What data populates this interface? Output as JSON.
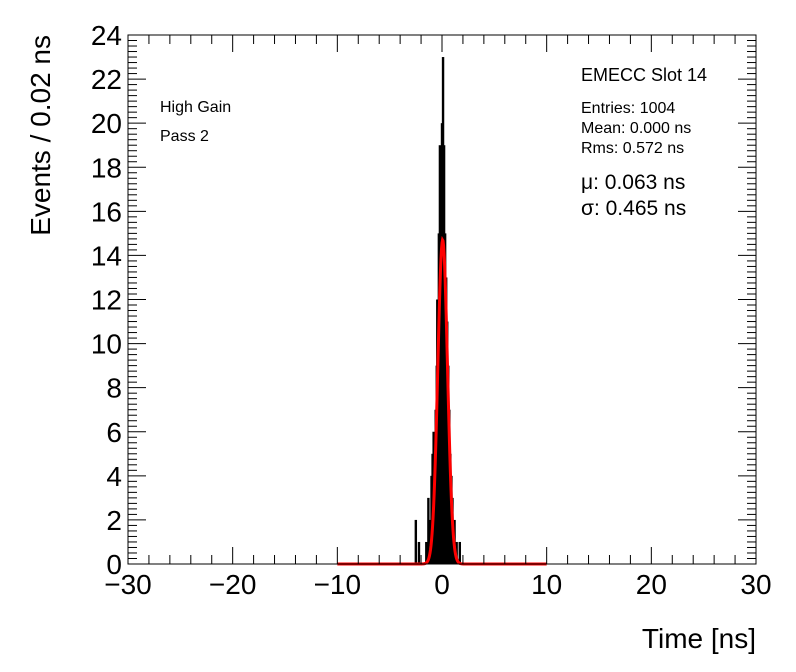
{
  "chart_data": {
    "type": "histogram",
    "xlabel": "Time [ns]",
    "ylabel": "Events / 0.02 ns",
    "xlim": [
      -30,
      30
    ],
    "ylim": [
      0,
      24
    ],
    "x_major_ticks": [
      -30,
      -20,
      -10,
      0,
      10,
      20,
      30
    ],
    "x_tick_labels": [
      "−30",
      "−20",
      "−10",
      "0",
      "10",
      "20",
      "30"
    ],
    "y_major_ticks": [
      0,
      2,
      4,
      6,
      8,
      10,
      12,
      14,
      16,
      18,
      20,
      22,
      24
    ],
    "y_tick_labels": [
      "0",
      "2",
      "4",
      "6",
      "8",
      "10",
      "12",
      "14",
      "16",
      "18",
      "20",
      "22",
      "24"
    ],
    "grid": false,
    "bin_width": 0.02,
    "histogram": {
      "name": "Data",
      "color": "#000000",
      "bins": [
        {
          "x": -2.5,
          "y": 2
        },
        {
          "x": -2.2,
          "y": 1
        },
        {
          "x": -1.5,
          "y": 1
        },
        {
          "x": -1.3,
          "y": 3
        },
        {
          "x": -1.2,
          "y": 2
        },
        {
          "x": -1.0,
          "y": 4
        },
        {
          "x": -0.9,
          "y": 5
        },
        {
          "x": -0.8,
          "y": 6
        },
        {
          "x": -0.7,
          "y": 4
        },
        {
          "x": -0.6,
          "y": 7
        },
        {
          "x": -0.5,
          "y": 9
        },
        {
          "x": -0.45,
          "y": 12
        },
        {
          "x": -0.4,
          "y": 8
        },
        {
          "x": -0.35,
          "y": 11
        },
        {
          "x": -0.3,
          "y": 15
        },
        {
          "x": -0.25,
          "y": 10
        },
        {
          "x": -0.2,
          "y": 19
        },
        {
          "x": -0.15,
          "y": 13
        },
        {
          "x": -0.1,
          "y": 18
        },
        {
          "x": -0.05,
          "y": 16
        },
        {
          "x": 0.0,
          "y": 20
        },
        {
          "x": 0.05,
          "y": 17
        },
        {
          "x": 0.1,
          "y": 23
        },
        {
          "x": 0.15,
          "y": 14
        },
        {
          "x": 0.2,
          "y": 19
        },
        {
          "x": 0.25,
          "y": 12
        },
        {
          "x": 0.3,
          "y": 15
        },
        {
          "x": 0.35,
          "y": 10
        },
        {
          "x": 0.4,
          "y": 13
        },
        {
          "x": 0.45,
          "y": 8
        },
        {
          "x": 0.5,
          "y": 11
        },
        {
          "x": 0.55,
          "y": 6
        },
        {
          "x": 0.6,
          "y": 9
        },
        {
          "x": 0.7,
          "y": 7
        },
        {
          "x": 0.8,
          "y": 5
        },
        {
          "x": 0.9,
          "y": 4
        },
        {
          "x": 1.0,
          "y": 3
        },
        {
          "x": 1.2,
          "y": 2
        },
        {
          "x": 1.4,
          "y": 1
        },
        {
          "x": 1.7,
          "y": 1
        }
      ]
    },
    "fit": {
      "type": "gaussian",
      "color": "#ff0000",
      "mu": 0.063,
      "sigma": 0.465,
      "amplitude": 14.7,
      "range": [
        -10,
        10
      ]
    },
    "annotations_left": [
      "High Gain",
      "Pass 2"
    ],
    "stats": {
      "title": "EMECC Slot 14",
      "entries": "Entries: 1004",
      "mean": "Mean: 0.000 ns",
      "rms": "Rms: 0.572 ns",
      "mu": "μ: 0.063 ns",
      "sigma": "σ: 0.465 ns"
    }
  }
}
